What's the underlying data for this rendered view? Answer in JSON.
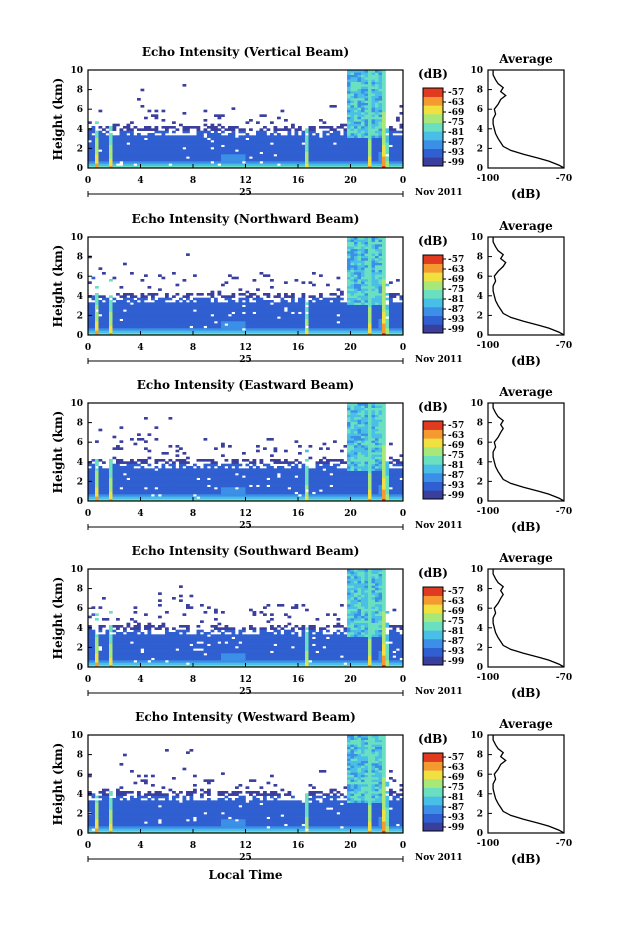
{
  "colors": {
    "scale": [
      "#3a3f9e",
      "#2f5fd0",
      "#3b8fe6",
      "#49bfe8",
      "#6be0c0",
      "#a8e878",
      "#f0e040",
      "#f59a30",
      "#e03a20"
    ],
    "axis": "#000000",
    "background": "#ffffff"
  },
  "chart_data": [
    {
      "type": "heatmap",
      "title": "Echo Intensity (Vertical Beam)",
      "ylabel": "Height (km)",
      "xlabel": "",
      "x_ticks": [
        "0",
        "4",
        "8",
        "12",
        "16",
        "20",
        "0"
      ],
      "xlim_hours": [
        0,
        24
      ],
      "y_ticks": [
        "0",
        "2",
        "4",
        "6",
        "8",
        "10"
      ],
      "ylim": [
        0,
        10
      ],
      "day_label": "25",
      "date_label": "Nov 2011",
      "colorbar": {
        "unit": "(dB)",
        "ticks": [
          "-57",
          "-63",
          "-69",
          "-75",
          "-81",
          "-87",
          "-93",
          "-99"
        ]
      },
      "average": {
        "title": "Average",
        "xlabel": "(dB)",
        "x_ticks": [
          "-100",
          "-70"
        ],
        "xlim": [
          -100,
          -70
        ],
        "y_ticks": [
          "0",
          "2",
          "4",
          "6",
          "8",
          "10"
        ],
        "ylim": [
          0,
          10
        ],
        "profile": [
          [
            0,
            -70
          ],
          [
            0.3,
            -72
          ],
          [
            0.7,
            -76
          ],
          [
            1.0,
            -80
          ],
          [
            1.4,
            -86
          ],
          [
            1.8,
            -91
          ],
          [
            2.2,
            -94
          ],
          [
            2.6,
            -95
          ],
          [
            3.0,
            -96
          ],
          [
            3.5,
            -97
          ],
          [
            4.0,
            -97.5
          ],
          [
            4.5,
            -98
          ],
          [
            5.0,
            -98
          ],
          [
            5.5,
            -97
          ],
          [
            6.0,
            -97.5
          ],
          [
            6.5,
            -96
          ],
          [
            7.0,
            -95
          ],
          [
            7.4,
            -93
          ],
          [
            7.8,
            -95
          ],
          [
            8.2,
            -94
          ],
          [
            8.6,
            -96
          ],
          [
            9.0,
            -97
          ],
          [
            9.5,
            -98
          ],
          [
            10,
            -98
          ]
        ]
      }
    },
    {
      "type": "heatmap",
      "title": "Echo Intensity (Northward Beam)",
      "ylabel": "Height (km)",
      "xlabel": "",
      "x_ticks": [
        "0",
        "4",
        "8",
        "12",
        "16",
        "20",
        "0"
      ],
      "xlim_hours": [
        0,
        24
      ],
      "y_ticks": [
        "0",
        "2",
        "4",
        "6",
        "8",
        "10"
      ],
      "ylim": [
        0,
        10
      ],
      "day_label": "25",
      "date_label": "Nov 2011",
      "colorbar": {
        "unit": "(dB)",
        "ticks": [
          "-57",
          "-63",
          "-69",
          "-75",
          "-81",
          "-87",
          "-93",
          "-99"
        ]
      },
      "average": {
        "title": "Average",
        "xlabel": "(dB)",
        "x_ticks": [
          "-100",
          "-70"
        ],
        "xlim": [
          -100,
          -70
        ],
        "y_ticks": [
          "0",
          "2",
          "4",
          "6",
          "8",
          "10"
        ],
        "ylim": [
          0,
          10
        ],
        "profile": [
          [
            0,
            -70
          ],
          [
            0.3,
            -72
          ],
          [
            0.7,
            -76
          ],
          [
            1.0,
            -80
          ],
          [
            1.4,
            -86
          ],
          [
            1.8,
            -91
          ],
          [
            2.2,
            -94
          ],
          [
            2.6,
            -95
          ],
          [
            3.0,
            -96
          ],
          [
            3.5,
            -97
          ],
          [
            4.0,
            -97.5
          ],
          [
            4.5,
            -98
          ],
          [
            5.0,
            -98
          ],
          [
            5.5,
            -97
          ],
          [
            6.0,
            -97.5
          ],
          [
            6.5,
            -96
          ],
          [
            7.0,
            -94
          ],
          [
            7.4,
            -93
          ],
          [
            7.8,
            -95
          ],
          [
            8.2,
            -94
          ],
          [
            8.6,
            -96
          ],
          [
            9.0,
            -97
          ],
          [
            9.5,
            -98
          ],
          [
            10,
            -98
          ]
        ]
      }
    },
    {
      "type": "heatmap",
      "title": "Echo Intensity (Eastward Beam)",
      "ylabel": "Height (km)",
      "xlabel": "",
      "x_ticks": [
        "0",
        "4",
        "8",
        "12",
        "16",
        "20",
        "0"
      ],
      "xlim_hours": [
        0,
        24
      ],
      "y_ticks": [
        "0",
        "2",
        "4",
        "6",
        "8",
        "10"
      ],
      "ylim": [
        0,
        10
      ],
      "day_label": "25",
      "date_label": "Nov 2011",
      "colorbar": {
        "unit": "(dB)",
        "ticks": [
          "-57",
          "-63",
          "-69",
          "-75",
          "-81",
          "-87",
          "-93",
          "-99"
        ]
      },
      "average": {
        "title": "Average",
        "xlabel": "(dB)",
        "x_ticks": [
          "-100",
          "-70"
        ],
        "xlim": [
          -100,
          -70
        ],
        "y_ticks": [
          "0",
          "2",
          "4",
          "6",
          "8",
          "10"
        ],
        "ylim": [
          0,
          10
        ],
        "profile": [
          [
            0,
            -70
          ],
          [
            0.3,
            -72
          ],
          [
            0.7,
            -76
          ],
          [
            1.0,
            -80
          ],
          [
            1.4,
            -86
          ],
          [
            1.8,
            -91
          ],
          [
            2.2,
            -94
          ],
          [
            2.6,
            -95
          ],
          [
            3.0,
            -96
          ],
          [
            3.5,
            -97
          ],
          [
            4.0,
            -97.5
          ],
          [
            4.5,
            -98
          ],
          [
            5.0,
            -98
          ],
          [
            5.5,
            -97
          ],
          [
            6.0,
            -97.5
          ],
          [
            6.5,
            -96
          ],
          [
            7.0,
            -95
          ],
          [
            7.4,
            -94
          ],
          [
            7.8,
            -95
          ],
          [
            8.2,
            -94
          ],
          [
            8.6,
            -96
          ],
          [
            9.0,
            -97
          ],
          [
            9.5,
            -98
          ],
          [
            10,
            -98
          ]
        ]
      }
    },
    {
      "type": "heatmap",
      "title": "Echo Intensity (Southward Beam)",
      "ylabel": "Height (km)",
      "xlabel": "",
      "x_ticks": [
        "0",
        "4",
        "8",
        "12",
        "16",
        "20",
        "0"
      ],
      "xlim_hours": [
        0,
        24
      ],
      "y_ticks": [
        "0",
        "2",
        "4",
        "6",
        "8",
        "10"
      ],
      "ylim": [
        0,
        10
      ],
      "day_label": "25",
      "date_label": "Nov 2011",
      "colorbar": {
        "unit": "(dB)",
        "ticks": [
          "-57",
          "-63",
          "-69",
          "-75",
          "-81",
          "-87",
          "-93",
          "-99"
        ]
      },
      "average": {
        "title": "Average",
        "xlabel": "(dB)",
        "x_ticks": [
          "-100",
          "-70"
        ],
        "xlim": [
          -100,
          -70
        ],
        "y_ticks": [
          "0",
          "2",
          "4",
          "6",
          "8",
          "10"
        ],
        "ylim": [
          0,
          10
        ],
        "profile": [
          [
            0,
            -70
          ],
          [
            0.3,
            -72
          ],
          [
            0.7,
            -76
          ],
          [
            1.0,
            -80
          ],
          [
            1.4,
            -86
          ],
          [
            1.8,
            -91
          ],
          [
            2.2,
            -94
          ],
          [
            2.6,
            -95
          ],
          [
            3.0,
            -96
          ],
          [
            3.5,
            -97
          ],
          [
            4.0,
            -97.5
          ],
          [
            4.5,
            -98
          ],
          [
            5.0,
            -98
          ],
          [
            5.5,
            -97
          ],
          [
            6.0,
            -97.5
          ],
          [
            6.5,
            -96
          ],
          [
            7.0,
            -95
          ],
          [
            7.4,
            -94
          ],
          [
            7.8,
            -95
          ],
          [
            8.2,
            -94
          ],
          [
            8.6,
            -96
          ],
          [
            9.0,
            -97
          ],
          [
            9.5,
            -98
          ],
          [
            10,
            -98
          ]
        ]
      }
    },
    {
      "type": "heatmap",
      "title": "Echo Intensity (Westward Beam)",
      "ylabel": "Height (km)",
      "xlabel": "Local Time",
      "x_ticks": [
        "0",
        "4",
        "8",
        "12",
        "16",
        "20",
        "0"
      ],
      "xlim_hours": [
        0,
        24
      ],
      "y_ticks": [
        "0",
        "2",
        "4",
        "6",
        "8",
        "10"
      ],
      "ylim": [
        0,
        10
      ],
      "day_label": "25",
      "date_label": "Nov 2011",
      "colorbar": {
        "unit": "(dB)",
        "ticks": [
          "-57",
          "-63",
          "-69",
          "-75",
          "-81",
          "-87",
          "-93",
          "-99"
        ]
      },
      "average": {
        "title": "Average",
        "xlabel": "(dB)",
        "x_ticks": [
          "-100",
          "-70"
        ],
        "xlim": [
          -100,
          -70
        ],
        "y_ticks": [
          "0",
          "2",
          "4",
          "6",
          "8",
          "10"
        ],
        "ylim": [
          0,
          10
        ],
        "profile": [
          [
            0,
            -70
          ],
          [
            0.3,
            -72
          ],
          [
            0.7,
            -76
          ],
          [
            1.0,
            -80
          ],
          [
            1.4,
            -86
          ],
          [
            1.8,
            -91
          ],
          [
            2.2,
            -94
          ],
          [
            2.6,
            -95
          ],
          [
            3.0,
            -96
          ],
          [
            3.5,
            -97
          ],
          [
            4.0,
            -97.5
          ],
          [
            4.5,
            -98
          ],
          [
            5.0,
            -98
          ],
          [
            5.5,
            -97
          ],
          [
            6.0,
            -97.5
          ],
          [
            6.5,
            -96
          ],
          [
            7.0,
            -95
          ],
          [
            7.4,
            -93
          ],
          [
            7.8,
            -95
          ],
          [
            8.2,
            -94
          ],
          [
            8.6,
            -96
          ],
          [
            9.0,
            -97
          ],
          [
            9.5,
            -98
          ],
          [
            10,
            -98
          ]
        ]
      }
    }
  ]
}
